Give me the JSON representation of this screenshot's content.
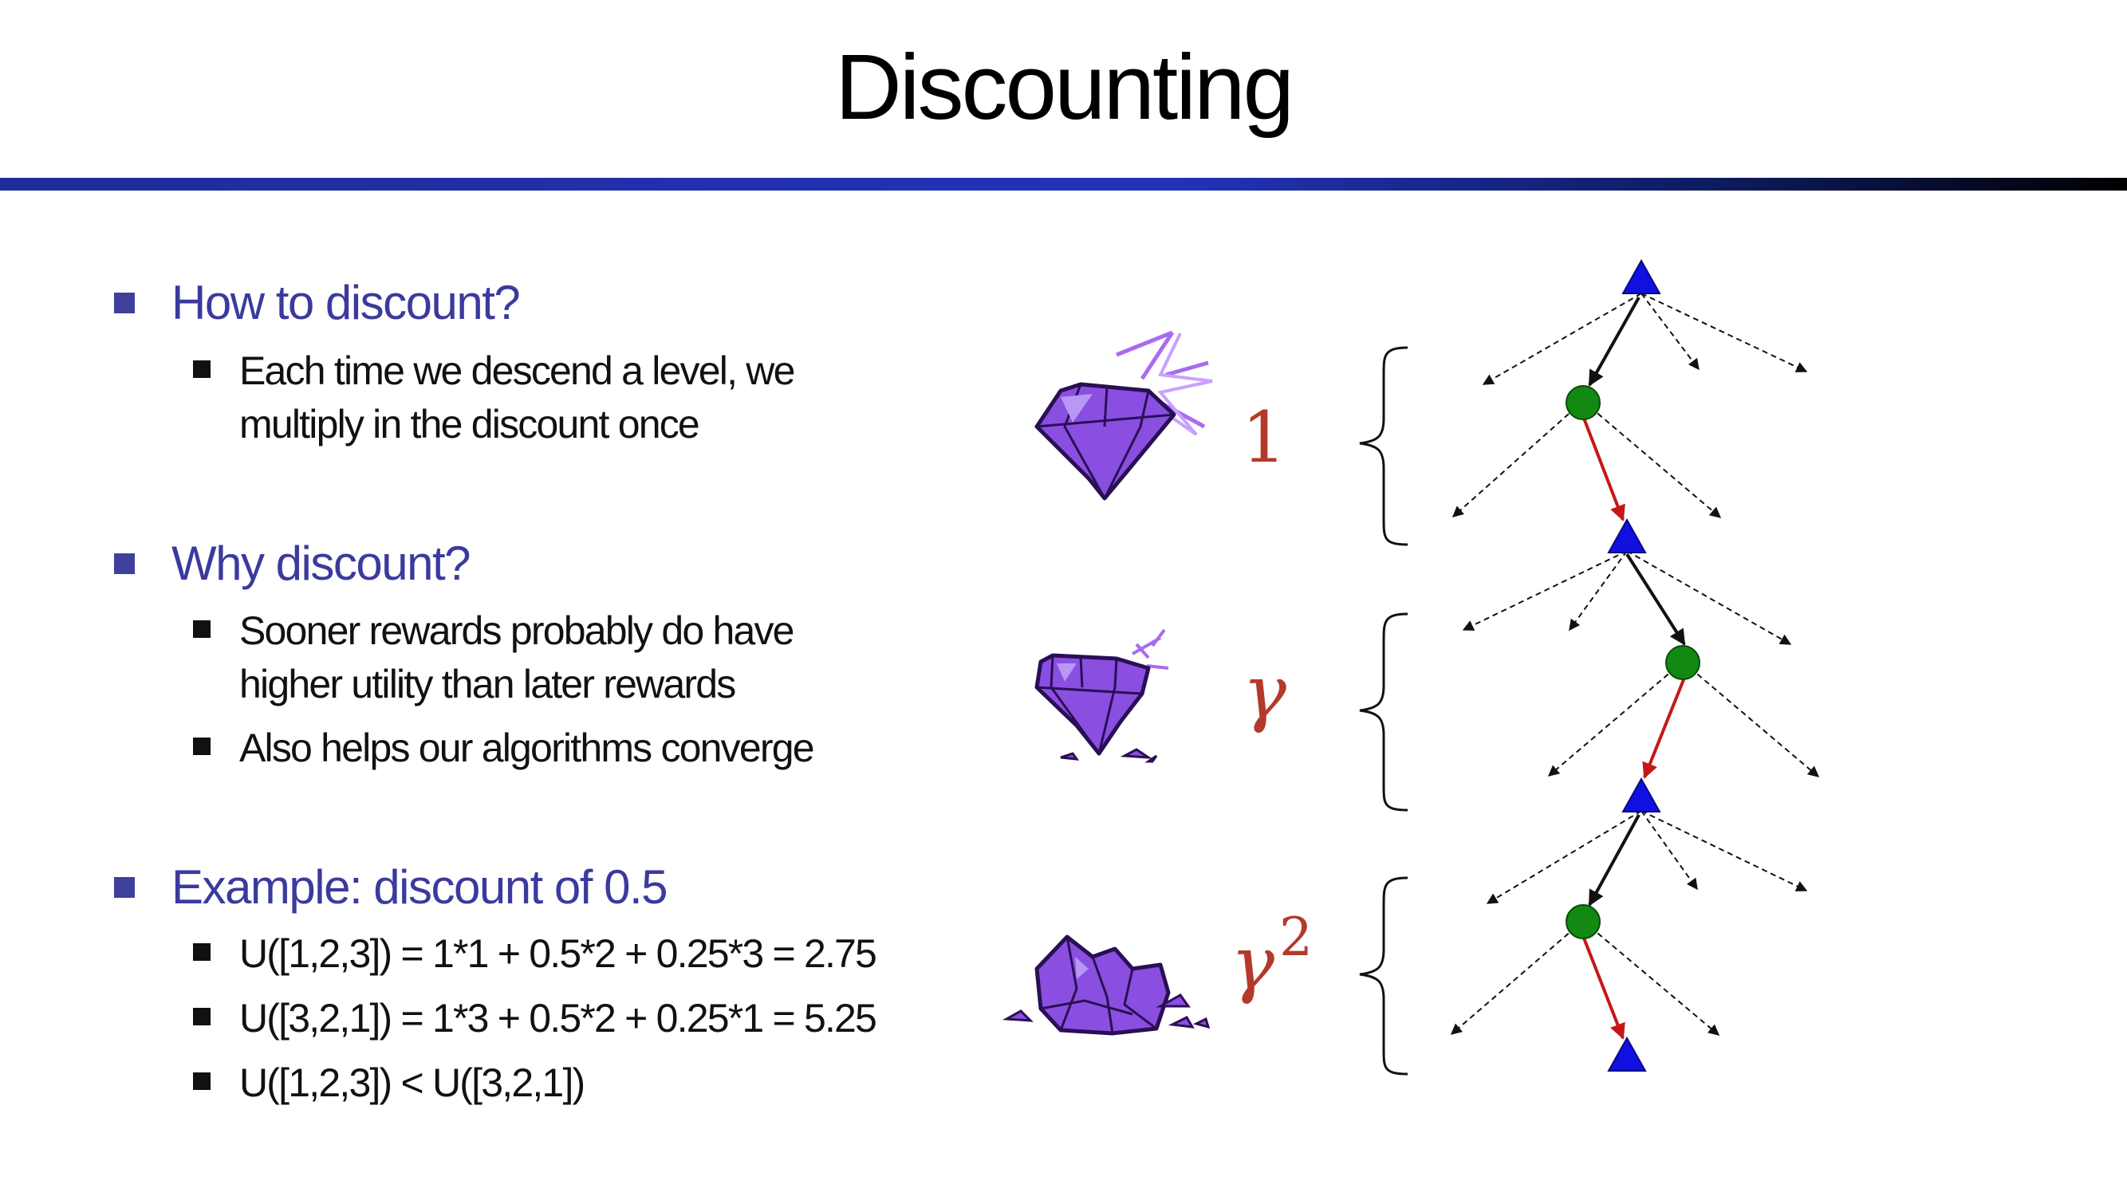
{
  "title": "Discounting",
  "sections": [
    {
      "heading": "How to discount?",
      "items": [
        [
          "Each time we descend a level, we",
          "multiply in the discount once"
        ]
      ]
    },
    {
      "heading": "Why discount?",
      "items": [
        [
          "Sooner rewards probably do have",
          "higher utility than later rewards"
        ],
        [
          "Also helps our algorithms converge"
        ]
      ]
    },
    {
      "heading": "Example: discount of 0.5",
      "items": [
        [
          "U([1,2,3]) = 1*1 + 0.5*2 + 0.25*3 = 2.75"
        ],
        [
          "U([3,2,1]) = 1*3 + 0.5*2 + 0.25*1 = 5.25"
        ],
        [
          "U([1,2,3]) < U([3,2,1])"
        ]
      ]
    }
  ],
  "factors": {
    "one": "1",
    "gamma": "γ",
    "gamma2_base": "γ",
    "gamma2_exp": "2"
  },
  "colors": {
    "heading": "#3a3a9e",
    "factor": "#b33a2a",
    "max_node": "#1010e0",
    "chance_node": "#128a12",
    "chosen_edge": "#c41818",
    "gem": "#8a4fe0"
  }
}
